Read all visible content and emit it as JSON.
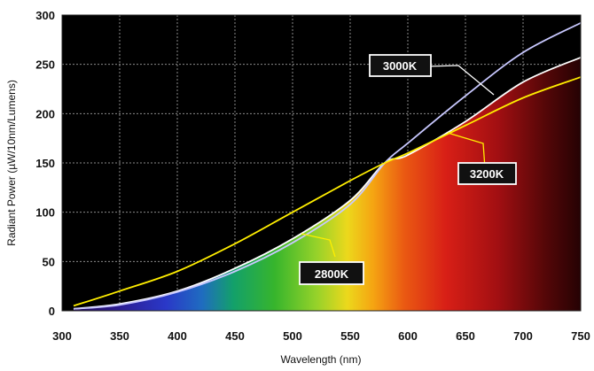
{
  "chart_data": {
    "type": "line",
    "title": "",
    "xlabel": "Wavelength (nm)",
    "ylabel": "Radiant Power (µW/10nm/Lumens)",
    "xlim": [
      300,
      750
    ],
    "ylim": [
      0,
      300
    ],
    "x_ticks": [
      "300",
      "350",
      "400",
      "450",
      "500",
      "550",
      "600",
      "650",
      "700",
      "750"
    ],
    "y_ticks": [
      "0",
      "50",
      "100",
      "150",
      "200",
      "250",
      "300"
    ],
    "grid": true,
    "background": "black",
    "fill": "visible spectrum gradient under the 2800K curve",
    "x": [
      310,
      350,
      400,
      450,
      500,
      550,
      580,
      600,
      650,
      700,
      750
    ],
    "series": [
      {
        "name": "2800K",
        "color": "#ffffff",
        "values": [
          2,
          7,
          20,
          43,
          73,
          112,
          150,
          158,
          192,
          232,
          257
        ]
      },
      {
        "name": "3000K",
        "color": "#c8c8ff",
        "values": [
          2,
          6,
          19,
          40,
          69,
          108,
          150,
          170,
          218,
          262,
          292
        ]
      },
      {
        "name": "3200K",
        "color": "#ffee00",
        "values": [
          5,
          20,
          40,
          68,
          100,
          132,
          150,
          160,
          188,
          216,
          237
        ]
      }
    ],
    "annotations": [
      "3000K",
      "3200K",
      "2800K"
    ]
  }
}
